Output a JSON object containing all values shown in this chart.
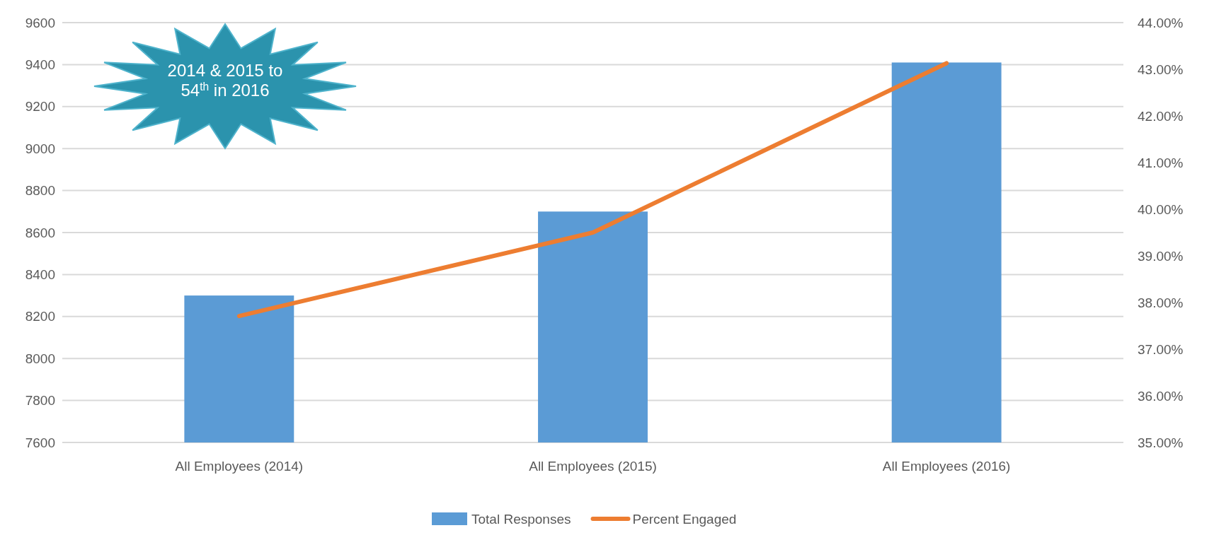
{
  "chart_data": {
    "type": "bar",
    "categories": [
      "All Employees (2014)",
      "All Employees (2015)",
      "All Employees (2016)"
    ],
    "series": [
      {
        "name": "Total Responses",
        "color": "#5b9bd5",
        "values": [
          8300,
          8700,
          9410
        ]
      },
      {
        "name": "Percent Engaged",
        "type": "line",
        "axis": "y2",
        "color": "#ed7d31",
        "values": [
          37.71,
          39.5,
          43.13
        ]
      }
    ],
    "ylim": [
      7600,
      9600
    ],
    "yticks": [
      7600,
      7800,
      8000,
      8200,
      8400,
      8600,
      8800,
      9000,
      9200,
      9400,
      9600
    ],
    "y2lim": [
      35,
      44
    ],
    "y2ticks": [
      {
        "value": 35,
        "label": "35.00%"
      },
      {
        "value": 36,
        "label": "36.00%"
      },
      {
        "value": 37,
        "label": "37.00%"
      },
      {
        "value": 38,
        "label": "38.00%"
      },
      {
        "value": 39,
        "label": "39.00%"
      },
      {
        "value": 40,
        "label": "40.00%"
      },
      {
        "value": 41,
        "label": "41.00%"
      },
      {
        "value": 42,
        "label": "42.00%"
      },
      {
        "value": 43,
        "label": "43.00%"
      },
      {
        "value": 44,
        "label": "44.00%"
      }
    ],
    "grid": "y",
    "legend": "bottom",
    "annotations": [
      "2014 & 2015 to 54$^{th}$ in 2016"
    ]
  }
}
